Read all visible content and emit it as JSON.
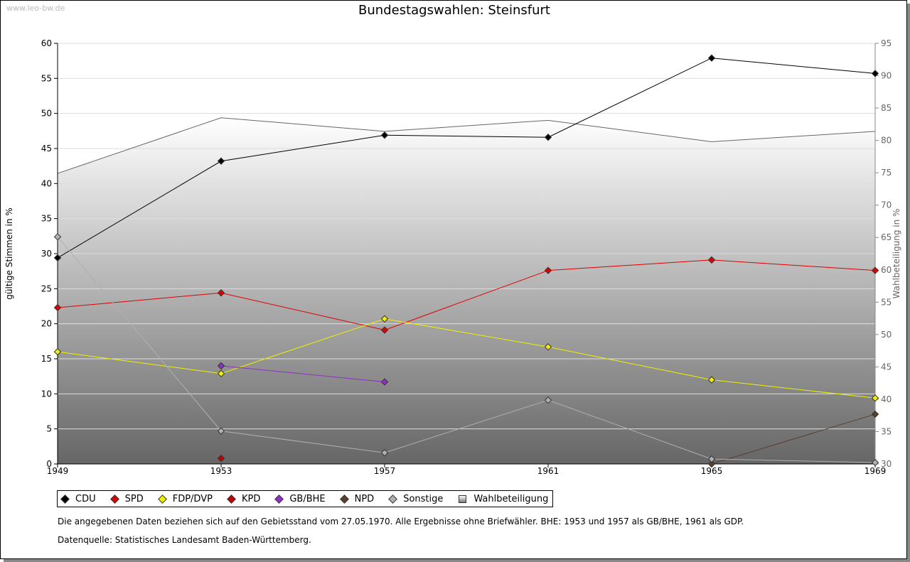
{
  "watermark": "www.leo-bw.de",
  "chart_data": {
    "type": "line",
    "title": "Bundestagswahlen: Steinsfurt",
    "ylabel": "gültige Stimmen in %",
    "y2label": "Wahlbeteiligung in %",
    "x": [
      1949,
      1953,
      1957,
      1961,
      1965,
      1969
    ],
    "ylim": [
      0,
      60
    ],
    "yticks": [
      0,
      5,
      10,
      15,
      20,
      25,
      30,
      35,
      40,
      45,
      50,
      55,
      60
    ],
    "y2lim": [
      30,
      95
    ],
    "y2ticks": [
      30,
      35,
      40,
      45,
      50,
      55,
      60,
      65,
      70,
      75,
      80,
      85,
      90,
      95
    ],
    "grid": true,
    "legend_position": "bottom",
    "series": [
      {
        "name": "CDU",
        "color": "#000000",
        "values": [
          29.4,
          43.2,
          46.9,
          46.6,
          57.9,
          55.7
        ]
      },
      {
        "name": "SPD",
        "color": "#e00000",
        "values": [
          22.3,
          24.4,
          19.1,
          27.6,
          29.1,
          27.6
        ]
      },
      {
        "name": "FDP/DVP",
        "color": "#f0f000",
        "values": [
          16.0,
          12.9,
          20.7,
          16.7,
          12.0,
          9.4
        ]
      },
      {
        "name": "KPD",
        "color": "#c00000",
        "values": [
          null,
          0.8,
          null,
          null,
          null,
          null
        ]
      },
      {
        "name": "GB/BHE",
        "color": "#8e2fc8",
        "values": [
          null,
          14.0,
          11.7,
          null,
          null,
          null
        ]
      },
      {
        "name": "NPD",
        "color": "#5a3e2e",
        "values": [
          null,
          null,
          null,
          null,
          0.0,
          7.1
        ]
      },
      {
        "name": "Sonstige",
        "color": "#b0b0b0",
        "values": [
          32.4,
          4.7,
          1.6,
          9.1,
          0.7,
          0.2
        ]
      }
    ],
    "turnout": {
      "name": "Wahlbeteiligung",
      "color": "#666666",
      "values": [
        74.9,
        83.5,
        81.4,
        83.1,
        79.8,
        81.4
      ]
    }
  },
  "notes": [
    "Die angegebenen Daten beziehen sich auf den Gebietsstand vom 27.05.1970. Alle Ergebnisse ohne Briefwähler. BHE: 1953 und 1957 als GB/BHE, 1961 als GDP.",
    "Datenquelle: Statistisches Landesamt Baden-Württemberg."
  ]
}
